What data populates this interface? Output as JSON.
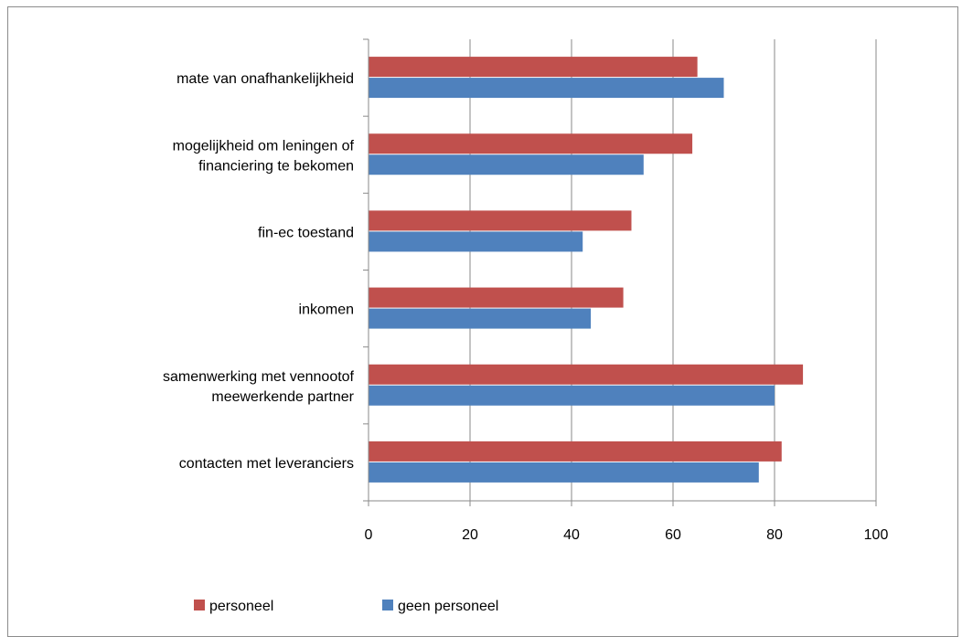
{
  "chart_data": {
    "type": "bar",
    "orientation": "horizontal",
    "categories": [
      [
        "mate van onafhankelijkheid"
      ],
      [
        "mogelijkheid om leningen of",
        "financiering te bekomen"
      ],
      [
        "fin-ec toestand"
      ],
      [
        "inkomen"
      ],
      [
        "samenwerking met vennootof",
        "meewerkende partner"
      ],
      [
        "contacten met leveranciers"
      ]
    ],
    "series": [
      {
        "name": "personeel",
        "color": "#c0504d",
        "values": [
          64.8,
          63.8,
          51.8,
          50.2,
          85.6,
          81.4
        ]
      },
      {
        "name": "geen personeel",
        "color": "#4f81bd",
        "values": [
          70.0,
          54.2,
          42.2,
          43.8,
          80.0,
          76.9
        ]
      }
    ],
    "xlim": [
      0,
      100
    ],
    "xticks": [
      "0",
      "20",
      "40",
      "60",
      "80",
      "100"
    ],
    "grid": true,
    "legend_position": "bottom"
  }
}
